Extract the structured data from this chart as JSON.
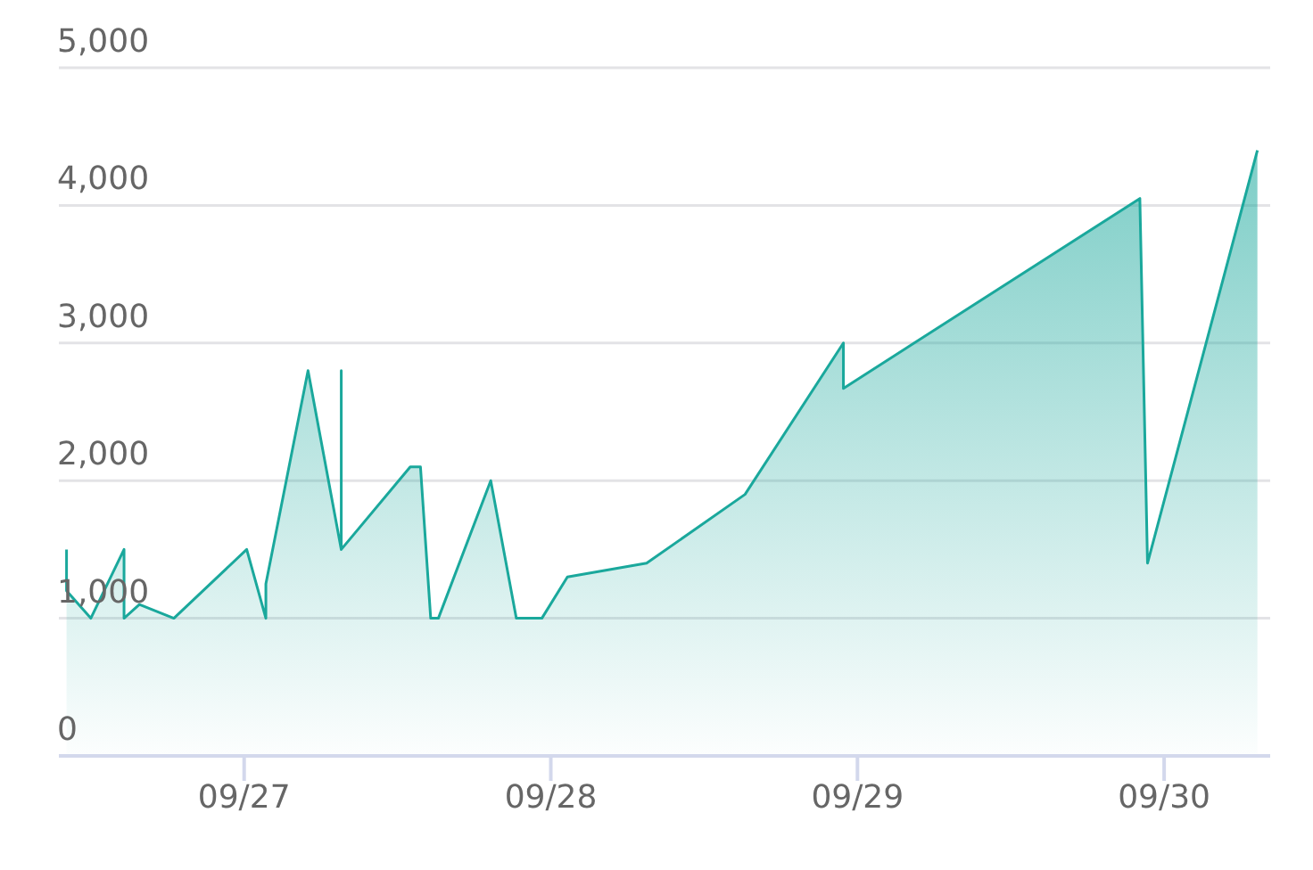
{
  "chart_data": {
    "type": "area",
    "color": "#1aa89c",
    "grid": "y",
    "x": [
      "--09-26T10:06",
      "--09-26T10:06",
      "--09-26T12:00",
      "--09-26T14:36",
      "--09-26T14:36",
      "--09-26T15:48",
      "--09-26T18:30",
      "--09-27T00:12",
      "--09-27T01:42",
      "--09-27T01:42",
      "--09-27T05:00",
      "--09-27T07:36",
      "--09-27T07:36",
      "--09-27T07:36",
      "--09-27T13:00",
      "--09-27T13:48",
      "--09-27T14:36",
      "--09-27T15:12",
      "--09-27T19:18",
      "--09-27T21:18",
      "--09-27T23:18",
      "--09-28T01:18",
      "--09-28T07:30",
      "--09-28T15:12",
      "--09-28T22:54",
      "--09-28T22:54",
      "--09-29T22:06",
      "--09-29T22:42",
      "--09-30T07:18"
    ],
    "values": [
      1500,
      1200,
      1000,
      1500,
      1000,
      1100,
      1000,
      1500,
      1000,
      1250,
      2800,
      1500,
      2800,
      1500,
      2100,
      2100,
      1000,
      1000,
      2000,
      1000,
      1000,
      1300,
      1400,
      1900,
      3000,
      2670,
      4050,
      1400,
      4400
    ],
    "xlim": [
      "--09-26T09:30",
      "--09-30T08:18"
    ],
    "xticks": [
      {
        "value": "--09-27",
        "label": "09/27"
      },
      {
        "value": "--09-28",
        "label": "09/28"
      },
      {
        "value": "--09-29",
        "label": "09/29"
      },
      {
        "value": "--09-30",
        "label": "09/30"
      }
    ],
    "ylim": [
      0,
      5000
    ],
    "yticks": [
      0,
      {
        "value": 1000,
        "label": "1,000"
      },
      {
        "value": 2000,
        "label": "2,000"
      },
      {
        "value": 3000,
        "label": "3,000"
      },
      {
        "value": 4000,
        "label": "4,000"
      },
      {
        "value": 5000,
        "label": "5,000"
      }
    ]
  }
}
